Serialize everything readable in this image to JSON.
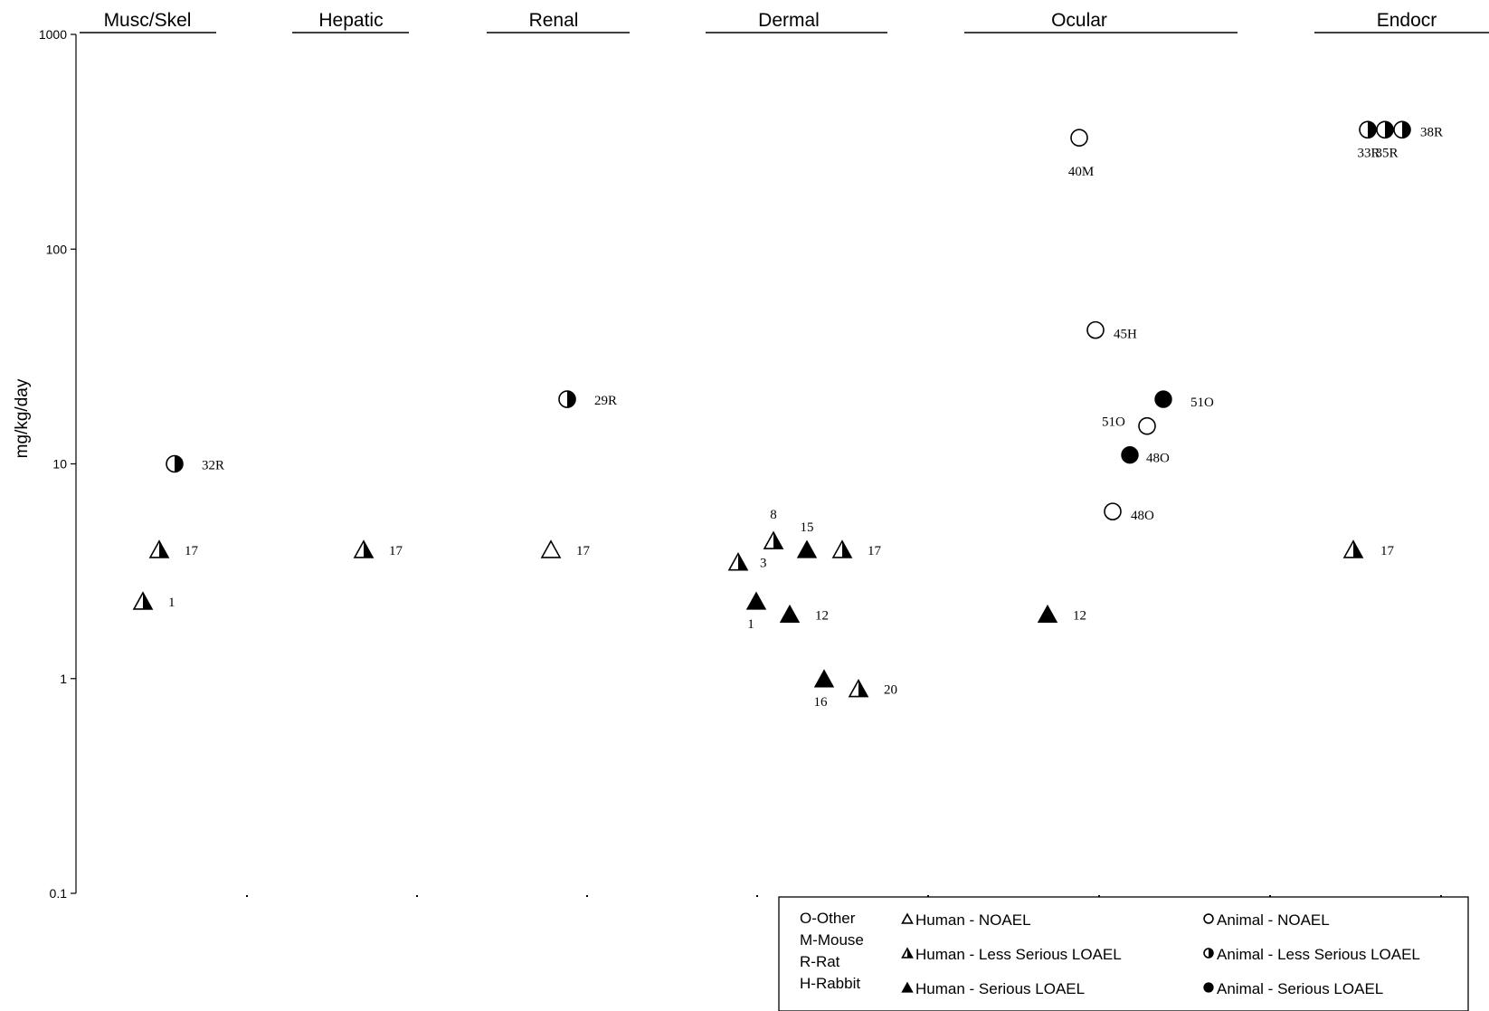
{
  "chart_data": {
    "type": "scatter",
    "ylabel": "mg/kg/day",
    "yscale": "log",
    "ylim": [
      0.1,
      1000
    ],
    "yticks": [
      {
        "value": 1000,
        "label": "1000"
      },
      {
        "value": 100,
        "label": "100"
      },
      {
        "value": 10,
        "label": "10"
      },
      {
        "value": 1,
        "label": "1"
      },
      {
        "value": 0.1,
        "label": "0.1"
      }
    ],
    "categories": [
      "Musc/Skel",
      "Hepatic",
      "Renal",
      "Dermal",
      "Ocular",
      "Endocr"
    ],
    "points": [
      {
        "category": "Musc/Skel",
        "y": 10,
        "type": "animal-less-serious",
        "label": "32R"
      },
      {
        "category": "Musc/Skel",
        "y": 4,
        "type": "human-less-serious",
        "label": "17"
      },
      {
        "category": "Musc/Skel",
        "y": 2.3,
        "type": "human-less-serious",
        "label": "1"
      },
      {
        "category": "Hepatic",
        "y": 4,
        "type": "human-less-serious",
        "label": "17"
      },
      {
        "category": "Renal",
        "y": 20,
        "type": "animal-less-serious",
        "label": "29R"
      },
      {
        "category": "Renal",
        "y": 4,
        "type": "human-noael",
        "label": "17"
      },
      {
        "category": "Dermal",
        "y": 3.5,
        "type": "human-less-serious",
        "label": "3"
      },
      {
        "category": "Dermal",
        "y": 2.3,
        "type": "human-serious",
        "label": "1"
      },
      {
        "category": "Dermal",
        "y": 4.4,
        "type": "human-less-serious",
        "label": "8"
      },
      {
        "category": "Dermal",
        "y": 2,
        "type": "human-serious",
        "label": "12"
      },
      {
        "category": "Dermal",
        "y": 4,
        "type": "human-serious",
        "label": "15"
      },
      {
        "category": "Dermal",
        "y": 1,
        "type": "human-serious",
        "label": "16"
      },
      {
        "category": "Dermal",
        "y": 4,
        "type": "human-less-serious",
        "label": "17"
      },
      {
        "category": "Dermal",
        "y": 0.9,
        "type": "human-less-serious",
        "label": "20"
      },
      {
        "category": "Ocular",
        "y": 2,
        "type": "human-serious",
        "label": "12"
      },
      {
        "category": "Ocular",
        "y": 330,
        "type": "animal-noael",
        "label": "40M"
      },
      {
        "category": "Ocular",
        "y": 42,
        "type": "animal-noael",
        "label": "45H"
      },
      {
        "category": "Ocular",
        "y": 6,
        "type": "animal-noael",
        "label": "48O"
      },
      {
        "category": "Ocular",
        "y": 11,
        "type": "animal-serious",
        "label": "48O"
      },
      {
        "category": "Ocular",
        "y": 15,
        "type": "animal-noael",
        "label": "51O"
      },
      {
        "category": "Ocular",
        "y": 20,
        "type": "animal-serious",
        "label": "51O"
      },
      {
        "category": "Endocr",
        "y": 360,
        "type": "animal-less-serious",
        "label": "33R"
      },
      {
        "category": "Endocr",
        "y": 360,
        "type": "animal-less-serious",
        "label": "35R"
      },
      {
        "category": "Endocr",
        "y": 360,
        "type": "animal-less-serious",
        "label": "38R"
      },
      {
        "category": "Endocr",
        "y": 4,
        "type": "human-less-serious",
        "label": "17"
      }
    ],
    "legend": {
      "species": [
        "O-Other",
        "M-Mouse",
        "R-Rat",
        "H-Rabbit"
      ],
      "entries": [
        {
          "type": "human-noael",
          "label": "Human - NOAEL"
        },
        {
          "type": "human-less-serious",
          "label": "Human - Less Serious LOAEL"
        },
        {
          "type": "human-serious",
          "label": "Human - Serious LOAEL"
        },
        {
          "type": "animal-noael",
          "label": "Animal - NOAEL"
        },
        {
          "type": "animal-less-serious",
          "label": "Animal - Less Serious LOAEL"
        },
        {
          "type": "animal-serious",
          "label": "Animal - Serious LOAEL"
        }
      ]
    }
  }
}
